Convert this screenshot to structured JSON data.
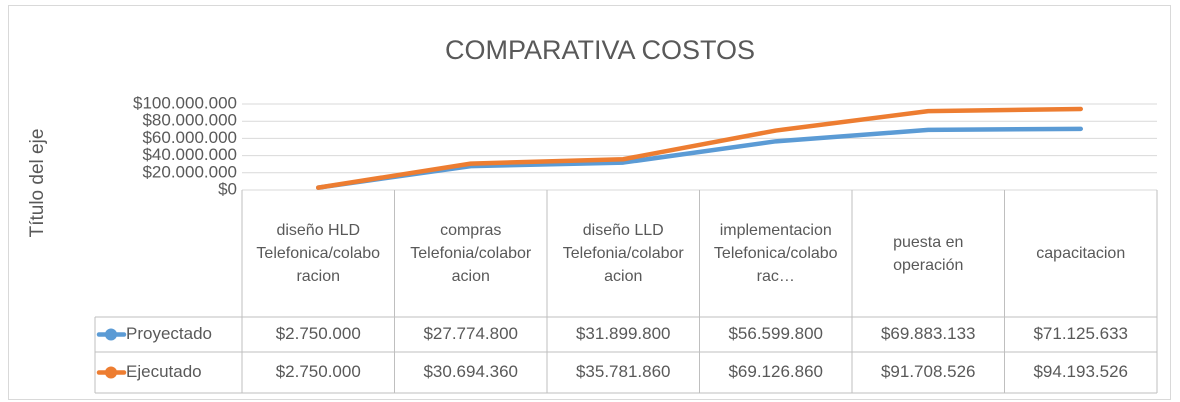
{
  "chart_data": {
    "type": "line",
    "title": "COMPARATIVA COSTOS",
    "y_label": "Título del eje",
    "categories": [
      "diseño HLD Telefonica/colaboracion",
      "compras Telefonia/colaboracion",
      "diseño LLD Telefonia/colaboracion",
      "implementacion Telefonica/colaborac…",
      "puesta en operación",
      "capacitacion"
    ],
    "series": [
      {
        "name": "Proyectado",
        "color": "#5b9bd5",
        "values": [
          2750000,
          27774800,
          31899800,
          56599800,
          69883133,
          71125633
        ],
        "value_labels": [
          "$2.750.000",
          "$27.774.800",
          "$31.899.800",
          "$56.599.800",
          "$69.883.133",
          "$71.125.633"
        ]
      },
      {
        "name": "Ejecutado",
        "color": "#ed7d31",
        "values": [
          2750000,
          30694360,
          35781860,
          69126860,
          91708526,
          94193526
        ],
        "value_labels": [
          "$2.750.000",
          "$30.694.360",
          "$35.781.860",
          "$69.126.860",
          "$91.708.526",
          "$94.193.526"
        ]
      }
    ],
    "ylim": [
      0,
      100000000
    ],
    "yticks": [
      {
        "value": 0,
        "label": "$0"
      },
      {
        "value": 20000000,
        "label": "$20.000.000"
      },
      {
        "value": 40000000,
        "label": "$40.000.000"
      },
      {
        "value": 60000000,
        "label": "$60.000.000"
      },
      {
        "value": 80000000,
        "label": "$80.000.000"
      },
      {
        "value": 100000000,
        "label": "$100.000.000"
      }
    ],
    "grid": true
  }
}
